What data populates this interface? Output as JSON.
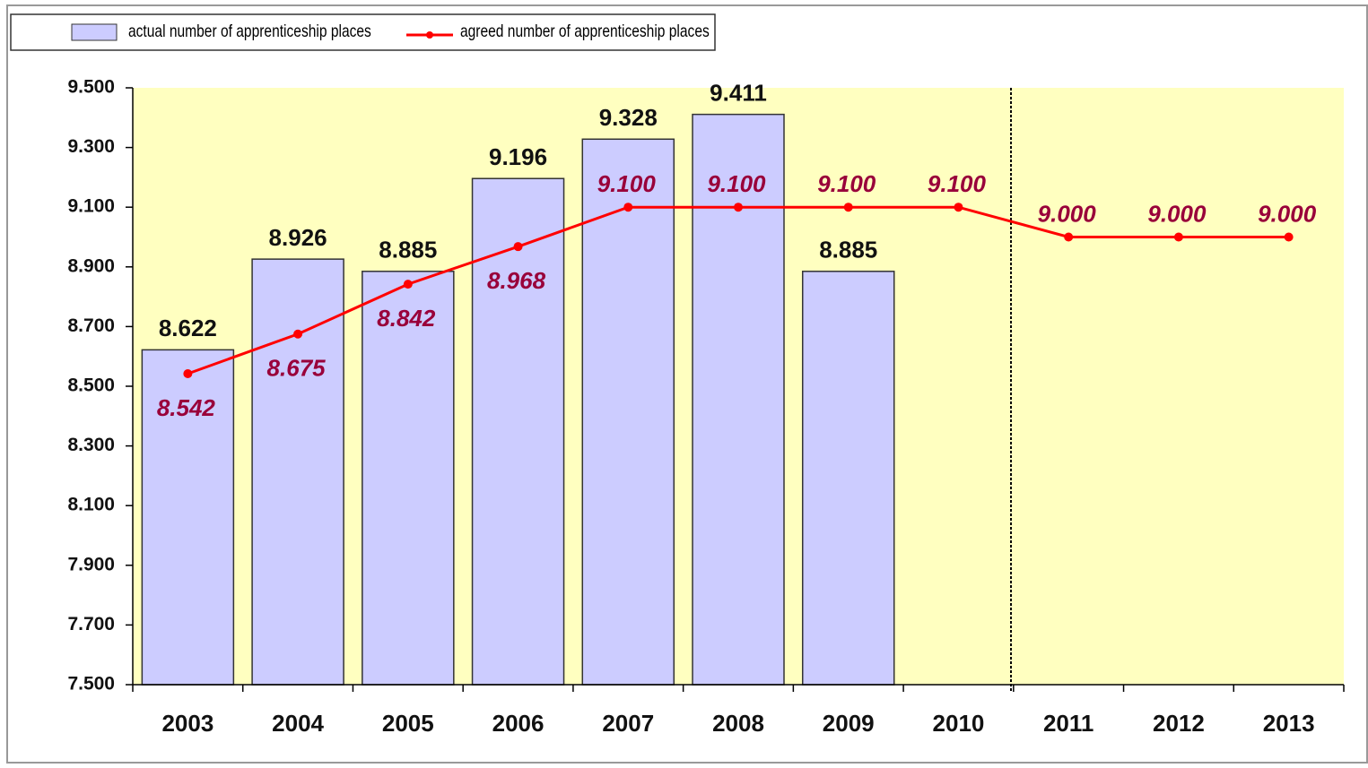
{
  "chart_data": {
    "type": "bar",
    "categories": [
      "2003",
      "2004",
      "2005",
      "2006",
      "2007",
      "2008",
      "2009",
      "2010",
      "2011",
      "2012",
      "2013"
    ],
    "series": [
      {
        "name": "actual number of apprenticeship places",
        "type": "bar",
        "color": "#ccccff",
        "values": [
          8.622,
          8.926,
          8.885,
          9.196,
          9.328,
          9.411,
          8.885,
          null,
          null,
          null,
          null
        ]
      },
      {
        "name": "agreed number of apprenticeship places",
        "type": "line",
        "color": "#ff0000",
        "values": [
          8.542,
          8.675,
          8.842,
          8.968,
          9.1,
          9.1,
          9.1,
          9.1,
          9.0,
          9.0,
          9.0
        ],
        "value_labels": [
          "8.542",
          "8.675",
          "8.842",
          "8.968",
          "9.100",
          "9.100",
          "9.100",
          "9.100",
          "9.000",
          "9.000",
          "9.000"
        ]
      }
    ],
    "ylim": [
      7.5,
      9.5
    ],
    "yticks": [
      {
        "value": 7.5,
        "label": "7.500"
      },
      {
        "value": 7.7,
        "label": "7.700"
      },
      {
        "value": 7.9,
        "label": "7.900"
      },
      {
        "value": 8.1,
        "label": "8.100"
      },
      {
        "value": 8.3,
        "label": "8.300"
      },
      {
        "value": 8.5,
        "label": "8.500"
      },
      {
        "value": 8.7,
        "label": "8.700"
      },
      {
        "value": 8.9,
        "label": "8.900"
      },
      {
        "value": 9.1,
        "label": "9.100"
      },
      {
        "value": 9.3,
        "label": "9.300"
      },
      {
        "value": 9.5,
        "label": "9.500"
      }
    ],
    "legend": "top-left"
  }
}
